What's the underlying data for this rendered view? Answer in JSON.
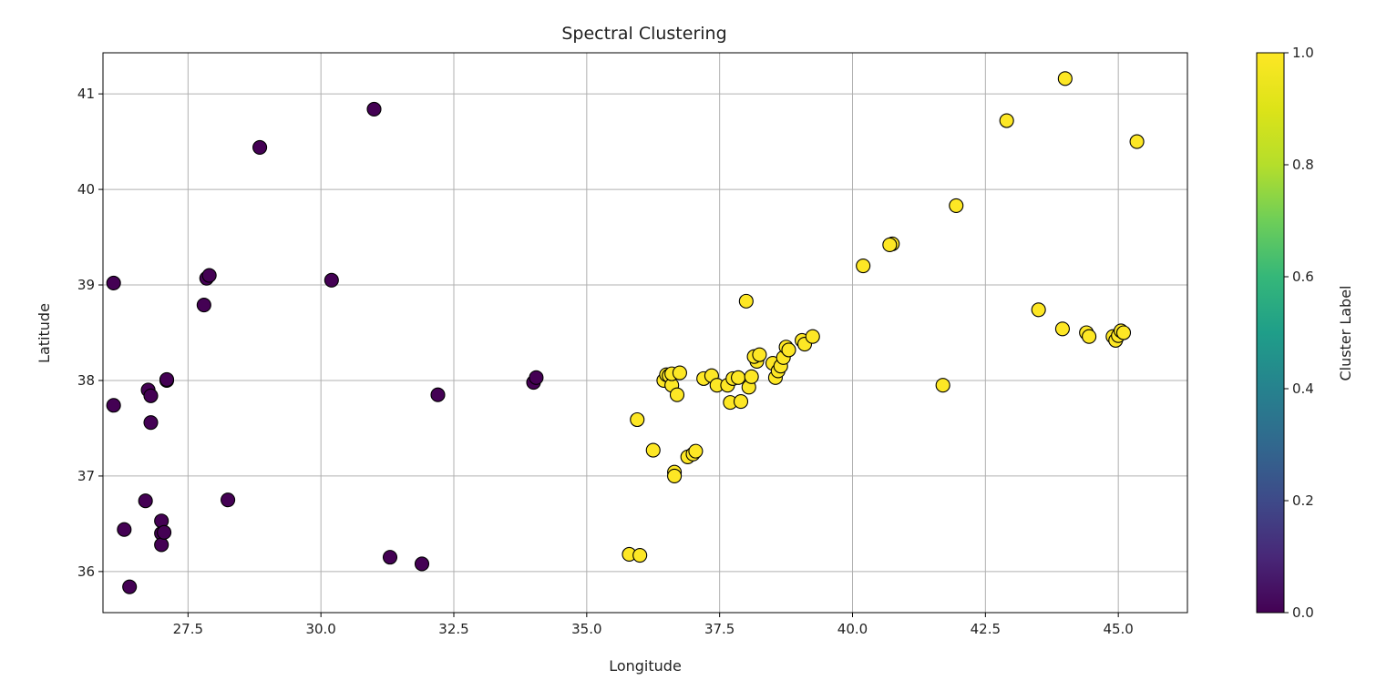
{
  "chart_data": {
    "type": "scatter",
    "title": "Spectral Clustering",
    "xlabel": "Longitude",
    "ylabel": "Latitude",
    "xlim": [
      25.9,
      46.3
    ],
    "ylim": [
      35.57,
      41.43
    ],
    "x_ticks": [
      27.5,
      30.0,
      32.5,
      35.0,
      37.5,
      40.0,
      42.5,
      45.0
    ],
    "x_tick_labels": [
      "27.5",
      "30.0",
      "32.5",
      "35.0",
      "37.5",
      "40.0",
      "42.5",
      "45.0"
    ],
    "y_ticks": [
      36,
      37,
      38,
      39,
      40,
      41
    ],
    "y_tick_labels": [
      "36",
      "37",
      "38",
      "39",
      "40",
      "41"
    ],
    "grid": true,
    "colorbar": {
      "label": "Cluster Label",
      "range": [
        0.0,
        1.0
      ],
      "ticks": [
        0.0,
        0.2,
        0.4,
        0.6,
        0.8,
        1.0
      ],
      "tick_labels": [
        "0.0",
        "0.2",
        "0.4",
        "0.6",
        "0.8",
        "1.0"
      ],
      "colormap": "viridis"
    },
    "colors": {
      "cluster_0": "#440154",
      "cluster_1": "#fde725",
      "edge": "#000000",
      "grid": "#b0b0b0"
    },
    "series": [
      {
        "cluster": 0,
        "x": [
          26.1,
          26.1,
          26.3,
          26.4,
          26.7,
          26.75,
          26.8,
          26.8,
          27.0,
          27.0,
          27.0,
          27.05,
          27.1,
          27.1,
          27.8,
          27.85,
          27.9,
          28.25,
          28.85,
          30.2,
          31.0,
          31.3,
          31.9,
          32.2,
          34.0,
          34.05
        ],
        "y": [
          39.02,
          37.74,
          36.44,
          35.84,
          36.74,
          37.9,
          37.84,
          37.56,
          36.4,
          36.28,
          36.53,
          36.41,
          38.0,
          38.01,
          38.79,
          39.07,
          39.1,
          36.75,
          40.44,
          39.05,
          40.84,
          36.15,
          36.08,
          37.85,
          37.98,
          38.03
        ]
      },
      {
        "cluster": 1,
        "x": [
          35.8,
          36.0,
          35.95,
          36.25,
          36.45,
          36.5,
          36.55,
          36.6,
          36.65,
          36.7,
          36.6,
          36.65,
          36.75,
          36.9,
          37.0,
          37.05,
          37.2,
          37.35,
          37.45,
          37.65,
          37.75,
          37.85,
          37.7,
          37.9,
          38.05,
          38.1,
          38.0,
          38.2,
          38.15,
          38.25,
          38.5,
          38.55,
          38.6,
          38.65,
          38.7,
          38.75,
          38.8,
          39.05,
          39.1,
          39.25,
          40.2,
          40.75,
          40.7,
          41.7,
          41.95,
          42.9,
          43.5,
          43.95,
          44.0,
          44.4,
          44.45,
          44.9,
          44.95,
          45.0,
          45.05,
          45.1,
          45.35
        ],
        "y": [
          36.18,
          36.17,
          37.59,
          37.27,
          38.0,
          38.06,
          38.05,
          37.95,
          37.04,
          37.85,
          38.07,
          37.0,
          38.08,
          37.2,
          37.23,
          37.26,
          38.02,
          38.05,
          37.95,
          37.95,
          38.02,
          38.03,
          37.77,
          37.78,
          37.93,
          38.04,
          38.83,
          38.2,
          38.25,
          38.27,
          38.18,
          38.03,
          38.1,
          38.15,
          38.24,
          38.35,
          38.32,
          38.42,
          38.38,
          38.46,
          39.2,
          39.43,
          39.42,
          37.95,
          39.83,
          40.72,
          38.74,
          38.54,
          41.16,
          38.5,
          38.46,
          38.46,
          38.42,
          38.47,
          38.52,
          38.5,
          40.5
        ]
      }
    ]
  }
}
